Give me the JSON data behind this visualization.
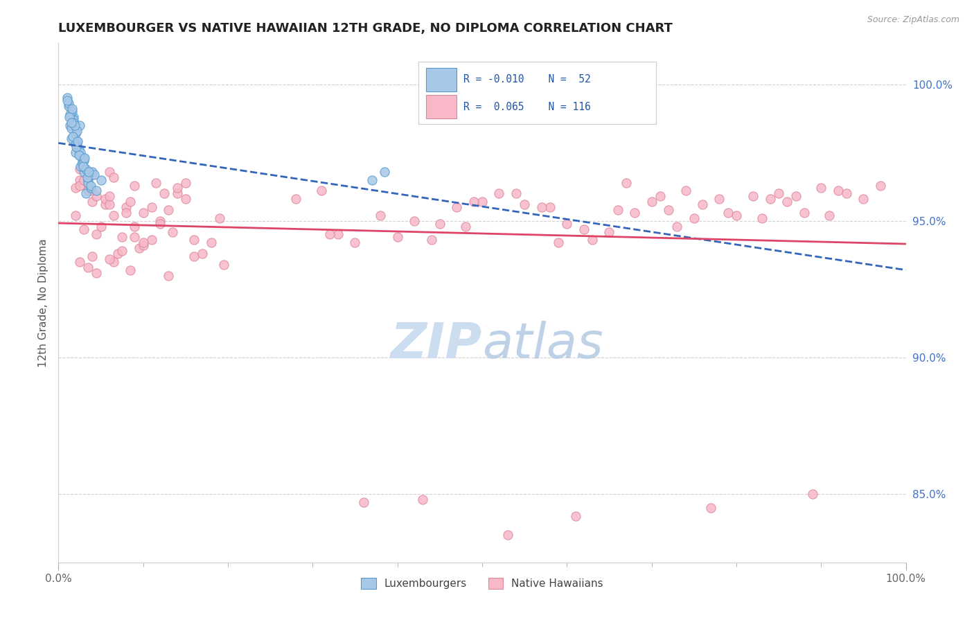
{
  "title": "LUXEMBOURGER VS NATIVE HAWAIIAN 12TH GRADE, NO DIPLOMA CORRELATION CHART",
  "source": "Source: ZipAtlas.com",
  "ylabel": "12th Grade, No Diploma",
  "xmin": 0.0,
  "xmax": 100.0,
  "ymin": 82.5,
  "ymax": 101.5,
  "yticks": [
    85.0,
    90.0,
    95.0,
    100.0
  ],
  "xticks": [
    0.0,
    100.0
  ],
  "xtick_labels": [
    "0.0%",
    "100.0%"
  ],
  "ytick_labels": [
    "85.0%",
    "90.0%",
    "95.0%",
    "100.0%"
  ],
  "blue_R": -0.01,
  "blue_N": 52,
  "pink_R": 0.065,
  "pink_N": 116,
  "blue_color": "#a8c8e8",
  "blue_edge_color": "#5599cc",
  "pink_color": "#f8b8c8",
  "pink_edge_color": "#dd8899",
  "blue_line_color": "#3366bb",
  "pink_line_color": "#dd4466",
  "watermark_color": "#ccddf0",
  "background_color": "#ffffff",
  "blue_scatter_x": [
    1.5,
    2.0,
    2.5,
    3.0,
    1.2,
    2.2,
    3.5,
    1.8,
    2.8,
    3.2,
    1.0,
    2.6,
    3.8,
    1.4,
    2.4,
    4.0,
    1.6,
    3.0,
    2.0,
    1.8,
    2.2,
    3.5,
    1.2,
    2.8,
    4.2,
    1.5,
    3.2,
    2.0,
    1.8,
    2.5,
    3.8,
    1.4,
    2.6,
    4.5,
    1.6,
    3.0,
    2.2,
    1.0,
    2.9,
    3.4,
    1.3,
    2.1,
    3.6,
    1.7,
    2.4,
    5.0,
    1.9,
    3.1,
    2.3,
    1.5,
    37.0,
    38.5
  ],
  "blue_scatter_y": [
    98.0,
    97.5,
    98.5,
    96.8,
    99.2,
    97.8,
    96.5,
    98.8,
    97.2,
    96.0,
    99.5,
    97.0,
    96.2,
    98.5,
    97.6,
    96.8,
    99.0,
    97.3,
    98.2,
    98.7,
    97.9,
    96.4,
    99.3,
    97.1,
    96.7,
    98.4,
    96.9,
    97.8,
    98.6,
    97.4,
    96.3,
    98.9,
    97.5,
    96.1,
    99.1,
    97.2,
    98.3,
    99.4,
    97.0,
    96.6,
    98.8,
    97.7,
    96.8,
    98.1,
    97.4,
    96.5,
    98.5,
    97.3,
    97.9,
    98.6,
    96.5,
    96.8
  ],
  "pink_scatter_x": [
    2.0,
    5.0,
    8.0,
    11.0,
    3.5,
    7.0,
    15.0,
    4.5,
    9.0,
    6.5,
    12.0,
    2.5,
    18.0,
    4.0,
    8.5,
    14.0,
    3.0,
    10.0,
    6.0,
    13.0,
    5.5,
    9.5,
    2.0,
    16.0,
    4.5,
    7.5,
    11.5,
    3.5,
    19.0,
    6.5,
    10.0,
    13.0,
    2.5,
    6.0,
    8.5,
    16.0,
    4.0,
    7.5,
    11.0,
    4.0,
    13.5,
    6.5,
    19.5,
    2.5,
    5.5,
    9.0,
    12.5,
    4.5,
    8.0,
    12.0,
    3.0,
    17.0,
    6.0,
    10.0,
    14.0,
    2.5,
    6.0,
    9.0,
    15.0,
    4.0,
    28.0,
    33.0,
    38.0,
    45.0,
    52.0,
    58.0,
    63.0,
    70.0,
    75.0,
    82.0,
    88.0,
    92.0,
    97.0,
    48.0,
    55.0,
    65.0,
    72.0,
    78.0,
    85.0,
    91.0,
    35.0,
    42.0,
    50.0,
    60.0,
    68.0,
    76.0,
    83.0,
    90.0,
    95.0,
    40.0,
    47.0,
    54.0,
    62.0,
    71.0,
    79.0,
    86.0,
    31.0,
    44.0,
    57.0,
    67.0,
    73.0,
    80.0,
    87.0,
    93.0,
    32.0,
    49.0,
    59.0,
    66.0,
    74.0,
    84.0,
    53.0,
    61.0,
    43.0,
    77.0,
    89.0,
    36.0
  ],
  "pink_scatter_y": [
    95.2,
    94.8,
    95.5,
    94.3,
    96.1,
    93.8,
    95.8,
    94.5,
    96.3,
    93.5,
    95.0,
    96.5,
    94.2,
    95.7,
    93.2,
    96.0,
    94.7,
    95.3,
    96.8,
    93.0,
    95.6,
    94.0,
    96.2,
    93.7,
    95.9,
    94.4,
    96.4,
    93.3,
    95.1,
    96.6,
    94.1,
    95.4,
    96.9,
    93.6,
    95.7,
    94.3,
    96.1,
    93.9,
    95.5,
    96.7,
    94.6,
    95.2,
    93.4,
    96.3,
    95.8,
    94.8,
    96.0,
    93.1,
    95.3,
    94.9,
    96.5,
    93.8,
    95.6,
    94.2,
    96.2,
    93.5,
    95.9,
    94.4,
    96.4,
    93.7,
    95.8,
    94.5,
    95.2,
    94.9,
    96.0,
    95.5,
    94.3,
    95.7,
    95.1,
    95.9,
    95.3,
    96.1,
    96.3,
    94.8,
    95.6,
    94.6,
    95.4,
    95.8,
    96.0,
    95.2,
    94.2,
    95.0,
    95.7,
    94.9,
    95.3,
    95.6,
    95.1,
    96.2,
    95.8,
    94.4,
    95.5,
    96.0,
    94.7,
    95.9,
    95.3,
    95.7,
    96.1,
    94.3,
    95.5,
    96.4,
    94.8,
    95.2,
    95.9,
    96.0,
    94.5,
    95.7,
    94.2,
    95.4,
    96.1,
    95.8,
    83.5,
    84.2,
    84.8,
    84.5,
    85.0,
    84.7
  ]
}
